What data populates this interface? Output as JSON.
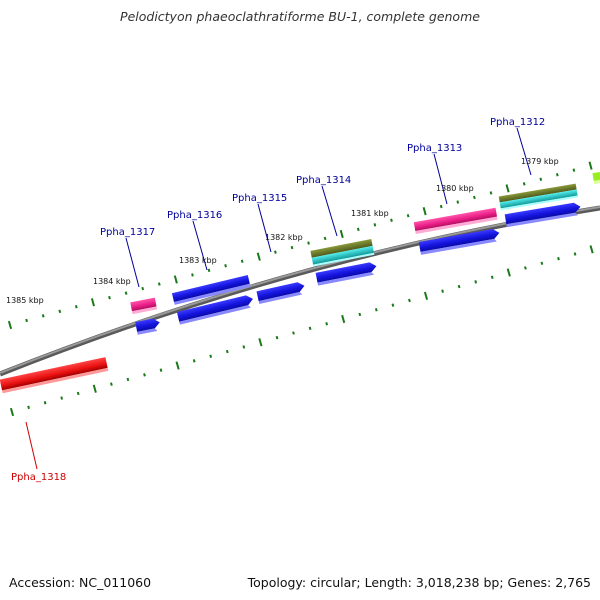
{
  "title": "Pelodictyon phaeoclathratiforme BU-1, complete genome",
  "footer": {
    "accession": "Accession: NC_011060",
    "summary": "Topology: circular; Length: 3,018,238 bp; Genes: 2,765"
  },
  "scale_labels": [
    "1379 kbp",
    "1380 kbp",
    "1381 kbp",
    "1382 kbp",
    "1383 kbp",
    "1384 kbp",
    "1385 kbp"
  ],
  "gene_labels": [
    {
      "name": "Ppha_1312",
      "color": "#000099"
    },
    {
      "name": "Ppha_1313",
      "color": "#000099"
    },
    {
      "name": "Ppha_1314",
      "color": "#000099"
    },
    {
      "name": "Ppha_1315",
      "color": "#000099"
    },
    {
      "name": "Ppha_1316",
      "color": "#000099"
    },
    {
      "name": "Ppha_1317",
      "color": "#000099"
    },
    {
      "name": "Ppha_1318",
      "color": "#cc0000"
    }
  ],
  "colors": {
    "backbone": "#808080",
    "tick": "#1a7a1a",
    "cds": "#1a1aee",
    "rna_pink": "#ee2288",
    "olive": "#6b7a2a",
    "cyan": "#22cccc",
    "red_gene": "#ee1111",
    "lime": "#99ee22"
  }
}
